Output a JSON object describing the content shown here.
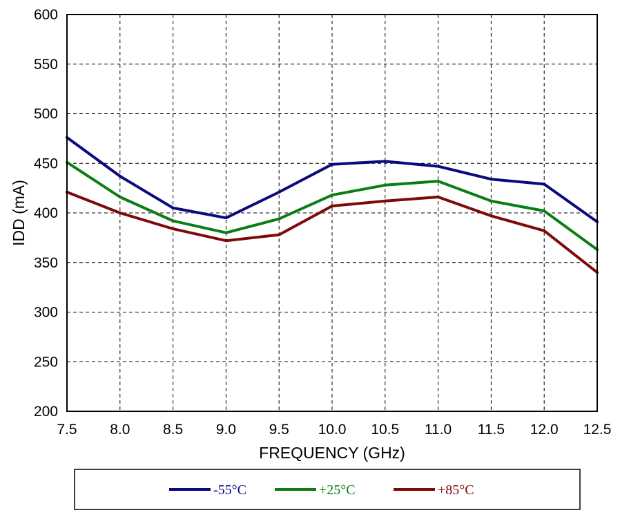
{
  "chart_data": {
    "type": "line",
    "title": "",
    "xlabel": "FREQUENCY (GHz)",
    "ylabel": "IDD (mA)",
    "xlim": [
      7.5,
      12.5
    ],
    "ylim": [
      200,
      600
    ],
    "x_ticks": [
      "7.5",
      "8.0",
      "8.5",
      "9.0",
      "9.5",
      "10.0",
      "10.5",
      "11.0",
      "11.5",
      "12.0",
      "12.5"
    ],
    "y_ticks": [
      "200",
      "250",
      "300",
      "350",
      "400",
      "450",
      "500",
      "550",
      "600"
    ],
    "grid": true,
    "legend_position": "bottom",
    "x": [
      7.5,
      8.0,
      8.5,
      9.0,
      9.5,
      10.0,
      10.5,
      11.0,
      11.5,
      12.0,
      12.5
    ],
    "series": [
      {
        "name": "-55°C",
        "color": "#0a0a7d",
        "values": [
          476,
          437,
          405,
          395,
          421,
          449,
          452,
          447,
          434,
          429,
          391
        ]
      },
      {
        "name": "+25°C",
        "color": "#0a7d15",
        "values": [
          451,
          416,
          392,
          380,
          394,
          418,
          428,
          432,
          412,
          402,
          363
        ]
      },
      {
        "name": "+85°C",
        "color": "#7d0a0a",
        "values": [
          421,
          400,
          384,
          372,
          378,
          407,
          412,
          416,
          397,
          382,
          340
        ]
      }
    ]
  }
}
